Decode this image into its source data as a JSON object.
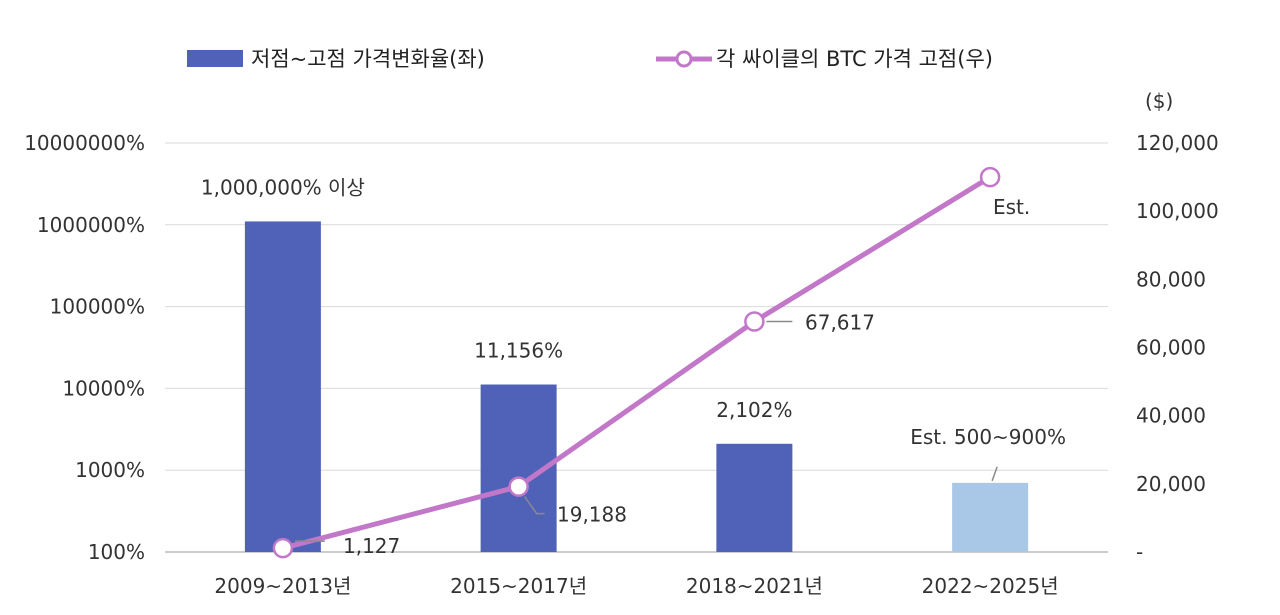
{
  "chart_data": {
    "type": "bar+line",
    "categories": [
      "2009~2013년",
      "2015~2017년",
      "2018~2021년",
      "2022~2025년"
    ],
    "left_axis": {
      "scale": "log",
      "ticks": [
        "100%",
        "1000%",
        "10000%",
        "100000%",
        "1000000%",
        "10000000%"
      ],
      "tick_values": [
        100,
        1000,
        10000,
        100000,
        1000000,
        10000000
      ],
      "range": [
        100,
        10000000
      ]
    },
    "right_axis": {
      "unit": "($)",
      "ticks": [
        "-",
        "20,000",
        "40,000",
        "60,000",
        "80,000",
        "100,000",
        "120,000"
      ],
      "tick_values": [
        0,
        20000,
        40000,
        60000,
        80000,
        100000,
        120000
      ],
      "range": [
        0,
        120000
      ]
    },
    "bar_series": {
      "name": "저점~고점 가격변화율(좌)",
      "values": [
        1100000,
        11156,
        2102,
        700
      ],
      "labels": [
        "1,000,000% 이상",
        "11,156%",
        "2,102%",
        "Est. 500~900%"
      ],
      "colors": [
        "#4f62b8",
        "#4f62b8",
        "#4f62b8",
        "#a9c7e6"
      ]
    },
    "line_series": {
      "name": "각 싸이클의 BTC 가격 고점(우)",
      "values": [
        1127,
        19188,
        67617,
        110000
      ],
      "labels": [
        "1,127",
        "19,188",
        "67,617",
        "Est."
      ],
      "color": "#c277c9"
    },
    "legend": [
      "저점~고점 가격변화율(좌)",
      "각 싸이클의 BTC 가격 고점(우)"
    ]
  }
}
